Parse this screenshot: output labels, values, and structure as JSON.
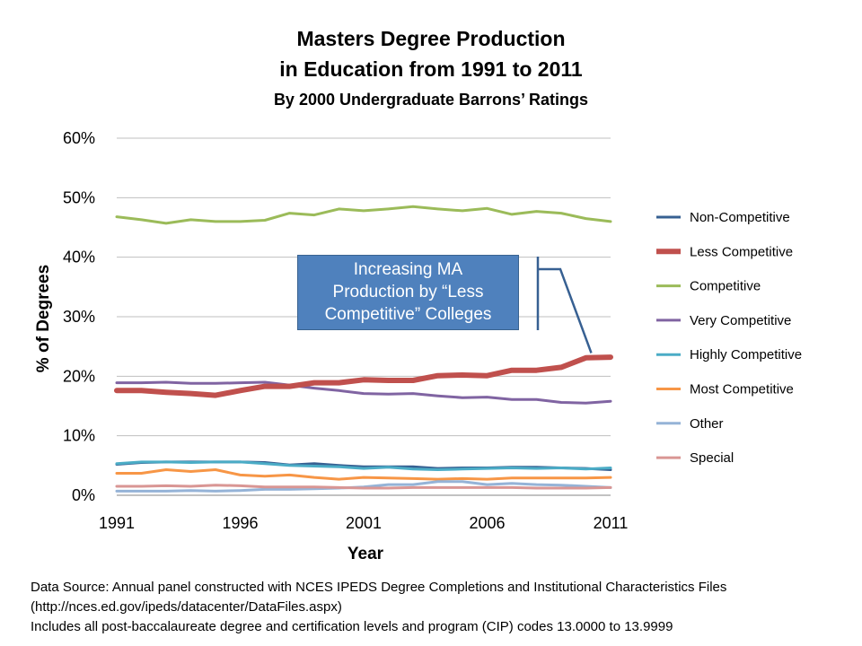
{
  "title_line1": "Masters Degree Production",
  "title_line2": "in Education from 1991 to 2011",
  "subtitle": "By 2000 Undergraduate Barrons’ Ratings",
  "callout": {
    "line1": "Increasing MA",
    "line2": "Production by “Less",
    "line3": "Competitive” Colleges",
    "color": "#4f81bd"
  },
  "source": {
    "line1": "Data Source: Annual panel constructed with NCES IPEDS Degree Completions and Institutional Characteristics Files",
    "line2": "(http://nces.ed.gov/ipeds/datacenter/DataFiles.aspx)",
    "line3": "Includes all post-baccalaureate degree and certification levels and program (CIP) codes 13.0000 to 13.9999"
  },
  "chart_data": {
    "type": "line",
    "title": "Masters Degree Production in Education from 1991 to 2011",
    "subtitle": "By 2000 Undergraduate Barrons’ Ratings",
    "xlabel": "Year",
    "ylabel": "% of Degrees",
    "xlim": [
      1991,
      2011
    ],
    "ylim": [
      0,
      60
    ],
    "x_ticks": [
      1991,
      1996,
      2001,
      2006,
      2011
    ],
    "x_tick_labels": [
      "1991",
      "1996",
      "2001",
      "2006",
      "2011"
    ],
    "y_ticks": [
      0,
      10,
      20,
      30,
      40,
      50,
      60
    ],
    "y_tick_labels": [
      "0%",
      "10%",
      "20%",
      "30%",
      "40%",
      "50%",
      "60%"
    ],
    "grid": true,
    "legend_position": "right",
    "x": [
      1991,
      1992,
      1993,
      1994,
      1995,
      1996,
      1997,
      1998,
      1999,
      2000,
      2001,
      2002,
      2003,
      2004,
      2005,
      2006,
      2007,
      2008,
      2009,
      2010,
      2011
    ],
    "series": [
      {
        "name": "Non-Competitive",
        "color": "#376092",
        "width": 3,
        "values": [
          5.2,
          5.5,
          5.6,
          5.6,
          5.6,
          5.6,
          5.5,
          5.1,
          5.3,
          5.0,
          4.8,
          4.8,
          4.8,
          4.5,
          4.6,
          4.6,
          4.7,
          4.7,
          4.6,
          4.5,
          4.3
        ]
      },
      {
        "name": "Less Competitive",
        "color": "#c0504d",
        "width": 6,
        "values": [
          17.6,
          17.6,
          17.3,
          17.1,
          16.8,
          17.6,
          18.3,
          18.3,
          18.9,
          18.9,
          19.4,
          19.3,
          19.3,
          20.1,
          20.2,
          20.1,
          21.0,
          21.0,
          21.5,
          23.1,
          23.2
        ]
      },
      {
        "name": "Competitive",
        "color": "#9bbb59",
        "width": 3,
        "values": [
          46.8,
          46.3,
          45.7,
          46.3,
          46.0,
          46.0,
          46.2,
          47.4,
          47.1,
          48.1,
          47.8,
          48.1,
          48.5,
          48.1,
          47.8,
          48.2,
          47.2,
          47.7,
          47.4,
          46.5,
          46.0
        ]
      },
      {
        "name": "Very Competitive",
        "color": "#8064a2",
        "width": 3,
        "values": [
          18.9,
          18.9,
          19.0,
          18.8,
          18.8,
          18.9,
          19.0,
          18.5,
          18.0,
          17.6,
          17.1,
          17.0,
          17.1,
          16.7,
          16.4,
          16.5,
          16.1,
          16.1,
          15.6,
          15.5,
          15.8
        ]
      },
      {
        "name": "Highly Competitive",
        "color": "#4bacc6",
        "width": 3,
        "values": [
          5.3,
          5.6,
          5.6,
          5.5,
          5.6,
          5.6,
          5.3,
          5.0,
          4.9,
          4.8,
          4.5,
          4.7,
          4.4,
          4.3,
          4.4,
          4.5,
          4.6,
          4.5,
          4.6,
          4.4,
          4.6
        ]
      },
      {
        "name": "Most Competitive",
        "color": "#f79646",
        "width": 3,
        "values": [
          3.7,
          3.7,
          4.3,
          4.0,
          4.3,
          3.4,
          3.2,
          3.4,
          3.0,
          2.7,
          3.0,
          2.9,
          2.8,
          2.7,
          2.8,
          2.7,
          2.9,
          2.9,
          2.9,
          2.9,
          3.0
        ]
      },
      {
        "name": "Other",
        "color": "#95b3d7",
        "width": 3,
        "values": [
          0.7,
          0.7,
          0.7,
          0.8,
          0.7,
          0.8,
          1.0,
          1.0,
          1.1,
          1.2,
          1.4,
          1.8,
          1.8,
          2.3,
          2.3,
          1.8,
          2.0,
          1.8,
          1.7,
          1.5,
          1.3
        ]
      },
      {
        "name": "Special",
        "color": "#d99694",
        "width": 3,
        "values": [
          1.5,
          1.5,
          1.6,
          1.5,
          1.7,
          1.6,
          1.4,
          1.4,
          1.4,
          1.3,
          1.2,
          1.2,
          1.3,
          1.3,
          1.3,
          1.3,
          1.3,
          1.2,
          1.2,
          1.2,
          1.3
        ]
      }
    ],
    "annotation": {
      "text": "Increasing MA Production by “Less Competitive” Colleges",
      "points_to": {
        "x": 2010,
        "y": 23
      }
    }
  }
}
